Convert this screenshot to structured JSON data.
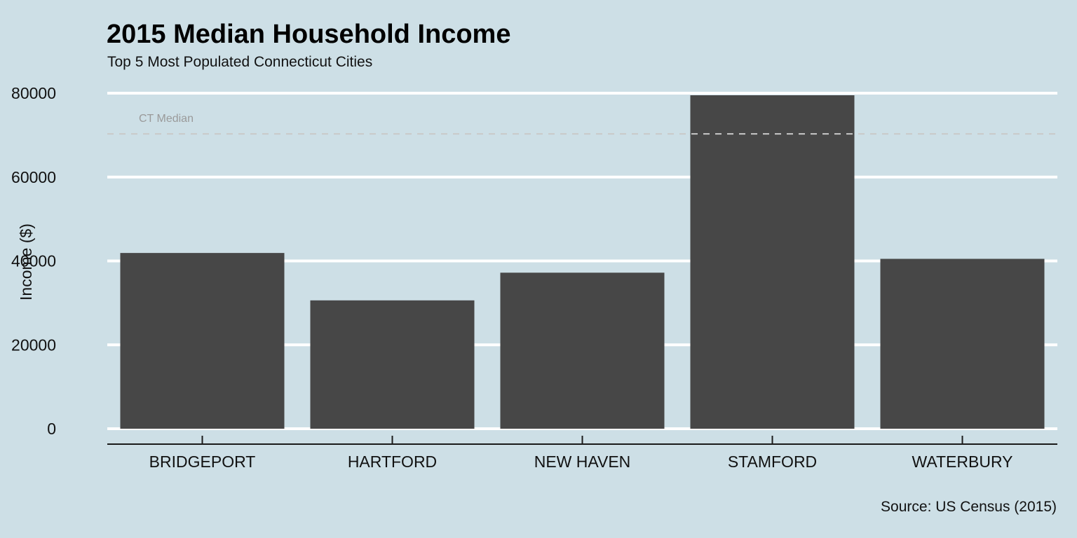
{
  "colors": {
    "background": "#cddfe6",
    "bar": "#474747",
    "gridline": "#ffffff",
    "axis": "#1a1a1a",
    "reference_line": "#c9c9c9",
    "reference_label": "#9a9a9a"
  },
  "chart_data": {
    "type": "bar",
    "title": "2015 Median Household Income",
    "subtitle": "Top 5 Most Populated Connecticut Cities",
    "xlabel": "",
    "ylabel": "Income ($)",
    "caption": "Source: US Census (2015)",
    "categories": [
      "BRIDGEPORT",
      "HARTFORD",
      "NEW HAVEN",
      "STAMFORD",
      "WATERBURY"
    ],
    "values": [
      41900,
      30600,
      37200,
      79500,
      40500
    ],
    "ylim": [
      0,
      80000
    ],
    "yticks": [
      0,
      20000,
      40000,
      60000,
      80000
    ],
    "grid": "horizontal",
    "legend": "none",
    "reference_line": {
      "label": "CT Median",
      "value": 70300,
      "style": "dashed"
    }
  }
}
